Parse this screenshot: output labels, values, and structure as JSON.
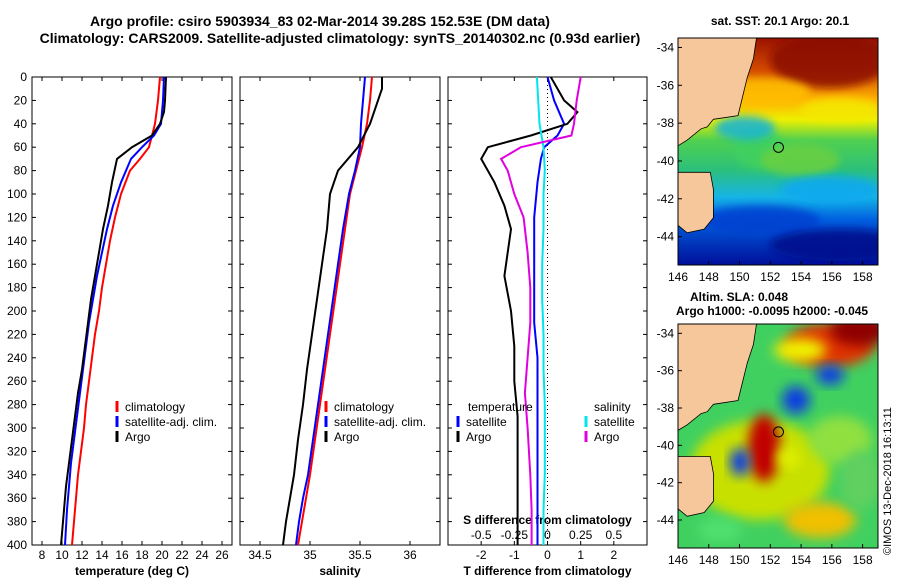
{
  "header": {
    "title_line1": "Argo profile: csiro 5903934_83 02-Mar-2014 39.28S 152.53E (DM data)",
    "title_line2": "Climatology: CARS2009. Satellite-adjusted climatology: synTS_20140302.nc (0.93d earlier)"
  },
  "colors": {
    "climatology": "#ff0000",
    "satellite": "#0000ff",
    "argo": "#000000",
    "temp_satellite": "#0000ff",
    "sal_satellite": "#00e5ee",
    "sal_argo": "#e000e0",
    "land": "#f7c79c"
  },
  "chart_data": [
    {
      "id": "temperature",
      "type": "line",
      "xlabel": "temperature (deg C)",
      "ylabel": "",
      "xlim": [
        7,
        27
      ],
      "ylim": [
        400,
        0
      ],
      "xticks": [
        "8",
        "10",
        "12",
        "14",
        "16",
        "18",
        "20",
        "22",
        "24",
        "26"
      ],
      "xtick_values": [
        8,
        10,
        12,
        14,
        16,
        18,
        20,
        22,
        24,
        26
      ],
      "yticks": [
        0,
        20,
        40,
        60,
        80,
        100,
        120,
        140,
        160,
        180,
        200,
        220,
        240,
        260,
        280,
        300,
        320,
        340,
        360,
        380,
        400
      ],
      "legend": [
        "climatology",
        "satellite-adj. clim.",
        "Argo"
      ],
      "series": [
        {
          "name": "climatology",
          "x": [
            19.8,
            19.6,
            19.3,
            18.7,
            17.8,
            16.8,
            15.9,
            15.3,
            14.8,
            14.4,
            14.0,
            13.7,
            13.3,
            13.0,
            12.7,
            12.4,
            12.2,
            11.9,
            11.6,
            11.4,
            11.2,
            11.0
          ],
          "y": [
            0,
            20,
            40,
            60,
            70,
            80,
            100,
            120,
            140,
            160,
            180,
            200,
            220,
            240,
            260,
            280,
            300,
            320,
            340,
            360,
            380,
            400
          ]
        },
        {
          "name": "satellite",
          "x": [
            20.2,
            20.1,
            19.9,
            19.2,
            18.0,
            16.9,
            15.9,
            15.1,
            14.5,
            14.0,
            13.5,
            13.1,
            12.7,
            12.4,
            12.1,
            11.8,
            11.5,
            11.2,
            10.9,
            10.7,
            10.5,
            10.3
          ],
          "y": [
            0,
            20,
            40,
            50,
            60,
            70,
            90,
            110,
            130,
            150,
            170,
            190,
            210,
            230,
            250,
            270,
            290,
            310,
            330,
            350,
            370,
            400
          ]
        },
        {
          "name": "Argo",
          "x": [
            20.4,
            20.3,
            20.2,
            19.8,
            19.0,
            17.0,
            15.5,
            15.0,
            14.6,
            14.1,
            13.7,
            13.3,
            12.9,
            12.6,
            12.3,
            12.0,
            11.6,
            11.3,
            11.0,
            10.7,
            10.4,
            10.2,
            9.9
          ],
          "y": [
            0,
            20,
            30,
            40,
            50,
            60,
            70,
            90,
            110,
            130,
            150,
            170,
            190,
            210,
            230,
            250,
            270,
            290,
            310,
            330,
            350,
            370,
            400
          ]
        }
      ]
    },
    {
      "id": "salinity",
      "type": "line",
      "xlabel": "salinity",
      "ylabel": "",
      "xlim": [
        34.3,
        36.3
      ],
      "ylim": [
        400,
        0
      ],
      "xticks": [
        "34.5",
        "35",
        "35.5",
        "36"
      ],
      "xtick_values": [
        34.5,
        35,
        35.5,
        36
      ],
      "legend": [
        "climatology",
        "satellite-adj. clim.",
        "Argo"
      ],
      "series": [
        {
          "name": "climatology",
          "x": [
            35.62,
            35.6,
            35.57,
            35.52,
            35.46,
            35.4,
            35.35,
            35.3,
            35.25,
            35.2,
            35.15,
            35.1,
            35.05,
            35.0,
            34.96,
            34.92,
            34.88
          ],
          "y": [
            0,
            20,
            40,
            60,
            80,
            100,
            130,
            160,
            190,
            220,
            250,
            280,
            310,
            340,
            360,
            380,
            400
          ]
        },
        {
          "name": "satellite",
          "x": [
            35.55,
            35.53,
            35.51,
            35.5,
            35.45,
            35.39,
            35.33,
            35.28,
            35.23,
            35.18,
            35.13,
            35.08,
            35.03,
            34.98,
            34.93,
            34.89,
            34.86
          ],
          "y": [
            0,
            20,
            40,
            60,
            80,
            100,
            130,
            160,
            190,
            220,
            250,
            280,
            310,
            340,
            360,
            380,
            400
          ]
        },
        {
          "name": "Argo",
          "x": [
            35.72,
            35.72,
            35.68,
            35.6,
            35.48,
            35.28,
            35.2,
            35.17,
            35.12,
            35.07,
            35.02,
            34.97,
            34.93,
            34.88,
            34.84,
            34.8,
            34.76,
            34.73
          ],
          "y": [
            0,
            10,
            20,
            40,
            60,
            80,
            100,
            130,
            160,
            190,
            220,
            250,
            280,
            310,
            340,
            360,
            380,
            400
          ]
        }
      ]
    },
    {
      "id": "difference",
      "type": "line",
      "xlabel": "T difference from climatology",
      "xlabel_top": "S difference from climatology",
      "xlim": [
        -3,
        3
      ],
      "ylim": [
        400,
        0
      ],
      "xticks": [
        "-2",
        "-1",
        "0",
        "1",
        "2"
      ],
      "xtick_values": [
        -2,
        -1,
        0,
        1,
        2
      ],
      "xticks_s": [
        "-0.5",
        "-0.25",
        "0",
        "0.25",
        "0.5"
      ],
      "xtick_values_s": [
        -0.5,
        -0.25,
        0,
        0.25,
        0.5
      ],
      "legend_titles": [
        "temperature",
        "salinity"
      ],
      "legend_t": [
        "satellite",
        "Argo"
      ],
      "legend_s": [
        "satellite",
        "Argo"
      ],
      "series": [
        {
          "name": "T satellite",
          "x": [
            0.0,
            0.2,
            0.5,
            0.3,
            -0.1,
            -0.2,
            -0.3,
            -0.4,
            -0.4,
            -0.4,
            -0.4,
            -0.3,
            -0.3,
            -0.3,
            -0.3,
            -0.3
          ],
          "y": [
            0,
            20,
            40,
            50,
            60,
            70,
            90,
            120,
            150,
            180,
            210,
            240,
            270,
            300,
            350,
            400
          ]
        },
        {
          "name": "T Argo",
          "x": [
            0.1,
            0.5,
            0.9,
            0.6,
            -0.5,
            -1.8,
            -2.0,
            -1.6,
            -1.3,
            -1.1,
            -1.2,
            -1.3,
            -1.1,
            -1.0,
            -1.0,
            -0.9,
            -0.9,
            -0.9,
            -0.9,
            -0.9
          ],
          "y": [
            0,
            20,
            30,
            40,
            50,
            60,
            70,
            90,
            110,
            130,
            150,
            170,
            200,
            230,
            260,
            290,
            320,
            350,
            380,
            400
          ]
        },
        {
          "name": "S satellite",
          "x": [
            -0.08,
            -0.07,
            -0.06,
            -0.03,
            -0.02,
            -0.03,
            -0.03,
            -0.04,
            -0.04,
            -0.03,
            -0.03,
            -0.02,
            -0.02,
            -0.02,
            -0.03,
            -0.03
          ],
          "y": [
            0,
            20,
            40,
            60,
            80,
            100,
            130,
            160,
            190,
            220,
            250,
            280,
            310,
            340,
            370,
            400
          ]
        },
        {
          "name": "S Argo",
          "x": [
            0.25,
            0.22,
            0.2,
            0.18,
            -0.2,
            -0.35,
            -0.3,
            -0.25,
            -0.18,
            -0.15,
            -0.13,
            -0.13,
            -0.15,
            -0.17,
            -0.15,
            -0.13,
            -0.12,
            -0.12
          ],
          "y": [
            0,
            20,
            40,
            50,
            60,
            70,
            80,
            100,
            120,
            150,
            180,
            210,
            240,
            270,
            300,
            340,
            370,
            400
          ]
        }
      ]
    },
    {
      "id": "sst_map",
      "type": "heatmap",
      "title": "sat. SST: 20.1  Argo: 20.1",
      "xticks": [
        "146",
        "148",
        "150",
        "152",
        "154",
        "156",
        "158"
      ],
      "xtick_values": [
        146,
        148,
        150,
        152,
        154,
        156,
        158
      ],
      "yticks": [
        "-34",
        "-36",
        "-38",
        "-40",
        "-42",
        "-44"
      ],
      "ytick_values": [
        -34,
        -36,
        -38,
        -40,
        -42,
        -44
      ],
      "xlim": [
        146,
        159
      ],
      "ylim": [
        -45.5,
        -33.5
      ],
      "float_position": {
        "lon": 152.53,
        "lat": -39.28
      }
    },
    {
      "id": "sla_map",
      "type": "heatmap",
      "title_line1": "Altim. SLA: 0.048",
      "title_line2": "Argo h1000: -0.0095  h2000: -0.045",
      "xticks": [
        "146",
        "148",
        "150",
        "152",
        "154",
        "156",
        "158"
      ],
      "xtick_values": [
        146,
        148,
        150,
        152,
        154,
        156,
        158
      ],
      "yticks": [
        "-34",
        "-36",
        "-38",
        "-40",
        "-42",
        "-44"
      ],
      "ytick_values": [
        -34,
        -36,
        -38,
        -40,
        -42,
        -44
      ],
      "xlim": [
        146,
        159
      ],
      "ylim": [
        -45.5,
        -33.5
      ],
      "float_position": {
        "lon": 152.53,
        "lat": -39.28
      }
    }
  ],
  "credit": "©IMOS 13-Dec-2018 16:13:11"
}
